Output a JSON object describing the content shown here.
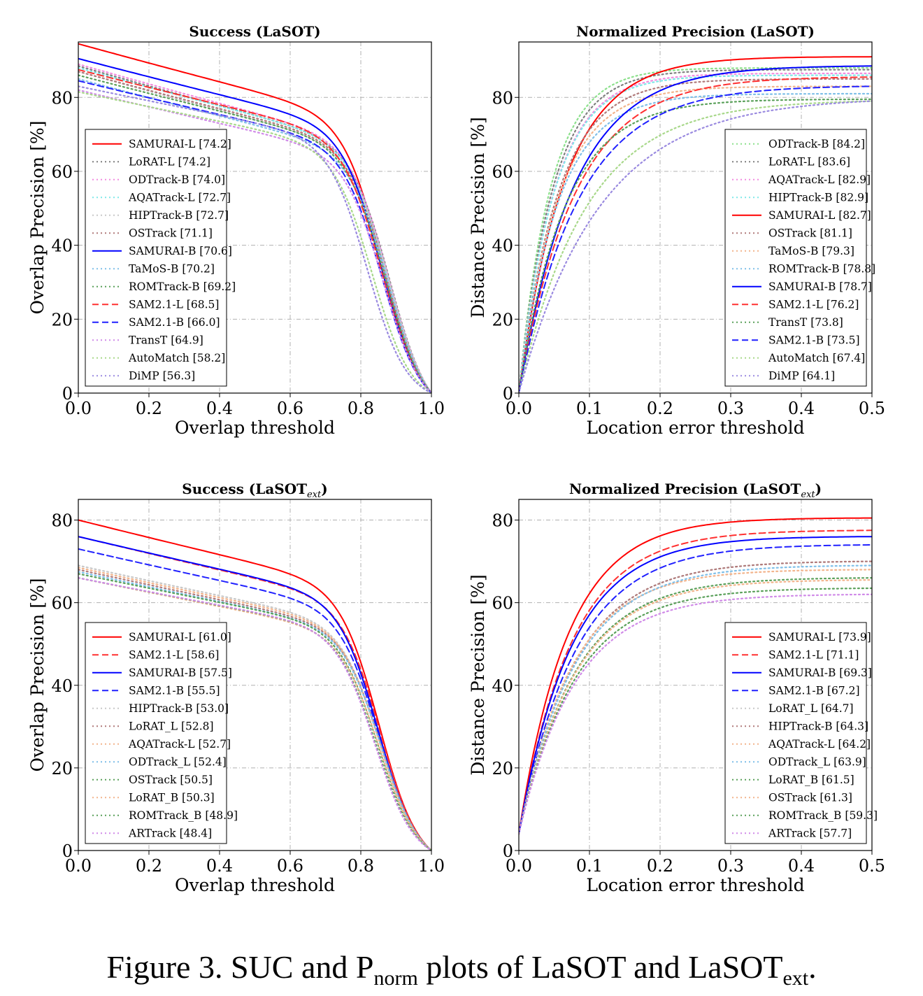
{
  "caption": {
    "prefix": "Figure 3. SUC and P",
    "sub1": "norm",
    "mid": " plots of LaSOT and LaSOT",
    "sub2": "ext",
    "suffix": "."
  },
  "chart_data": [
    {
      "type": "line",
      "title": "Success (LaSOT)",
      "title_sub": "",
      "title_suffix": "",
      "xlabel": "Overlap threshold",
      "ylabel": "Overlap Precision [%]",
      "xlim": [
        0,
        1.0
      ],
      "ylim": [
        0,
        95
      ],
      "xticks": [
        0.0,
        0.2,
        0.4,
        0.6,
        0.8,
        1.0
      ],
      "xtick_labels": [
        "0.0",
        "0.2",
        "0.4",
        "0.6",
        "0.8",
        "1.0"
      ],
      "yticks": [
        0,
        20,
        40,
        60,
        80
      ],
      "grid": true,
      "legend_position": "lower-left",
      "curve_kind": "success",
      "series": [
        {
          "name": "SAMURAI-L",
          "score": "[74.2]",
          "start": 94.5,
          "auc": 74.2,
          "color": "#ff0000",
          "style": "solid",
          "k": 1.0
        },
        {
          "name": "LoRAT-L",
          "score": "[74.2]",
          "start": 88.5,
          "auc": 74.2,
          "color": "#7f7f7f",
          "style": "dotted",
          "k": 1.0
        },
        {
          "name": "ODTrack-B",
          "score": "[74.0]",
          "start": 89,
          "auc": 74.0,
          "color": "#f28ce0",
          "style": "dotted",
          "k": 1.0
        },
        {
          "name": "AQATrack-L",
          "score": "[72.7]",
          "start": 88,
          "auc": 72.7,
          "color": "#7fe8e8",
          "style": "dotted",
          "k": 1.0
        },
        {
          "name": "HIPTrack-B",
          "score": "[72.7]",
          "start": 87,
          "auc": 72.7,
          "color": "#c8c8c8",
          "style": "dotted",
          "k": 1.0
        },
        {
          "name": "OSTrack",
          "score": "[71.1]",
          "start": 87,
          "auc": 71.1,
          "color": "#b07a7a",
          "style": "dotted",
          "k": 1.0
        },
        {
          "name": "SAMURAI-B",
          "score": "[70.6]",
          "start": 90.5,
          "auc": 70.6,
          "color": "#0000ff",
          "style": "solid",
          "k": 1.0
        },
        {
          "name": "TaMoS-B",
          "score": "[70.2]",
          "start": 85,
          "auc": 70.2,
          "color": "#7fbfe8",
          "style": "dotted",
          "k": 1.0
        },
        {
          "name": "ROMTrack-B",
          "score": "[69.2]",
          "start": 86,
          "auc": 69.2,
          "color": "#5aa05a",
          "style": "dotted",
          "k": 1.0
        },
        {
          "name": "SAM2.1-L",
          "score": "[68.5]",
          "start": 87.5,
          "auc": 68.5,
          "color": "#ff3030",
          "style": "dashed",
          "k": 1.0
        },
        {
          "name": "SAM2.1-B",
          "score": "[66.0]",
          "start": 84.5,
          "auc": 66.0,
          "color": "#2020ff",
          "style": "dashed",
          "k": 1.0
        },
        {
          "name": "TransT",
          "score": "[64.9]",
          "start": 82,
          "auc": 64.9,
          "color": "#d08ae8",
          "style": "dotted",
          "k": 1.0
        },
        {
          "name": "AutoMatch",
          "score": "[58.2]",
          "start": 81.5,
          "auc": 58.2,
          "color": "#a8d88a",
          "style": "dotted",
          "k": 1.0
        },
        {
          "name": "DiMP",
          "score": "[56.3]",
          "start": 83,
          "auc": 56.3,
          "color": "#9a8ae0",
          "style": "dotted",
          "k": 1.0
        }
      ]
    },
    {
      "type": "line",
      "title": "Normalized Precision (LaSOT)",
      "title_sub": "",
      "title_suffix": "",
      "xlabel": "Location error threshold",
      "ylabel": "Distance Precision [%]",
      "xlim": [
        0,
        0.5
      ],
      "ylim": [
        0,
        95
      ],
      "xticks": [
        0.0,
        0.1,
        0.2,
        0.3,
        0.4,
        0.5
      ],
      "xtick_labels": [
        "0.0",
        "0.1",
        "0.2",
        "0.3",
        "0.4",
        "0.5"
      ],
      "yticks": [
        0,
        20,
        40,
        60,
        80
      ],
      "grid": true,
      "legend_position": "lower-right",
      "curve_kind": "precision",
      "series": [
        {
          "name": "ODTrack-B",
          "score": "[84.2]",
          "start": 0,
          "end": 88,
          "color": "#8ce08c",
          "style": "dotted",
          "k": 0.045
        },
        {
          "name": "LoRAT-L",
          "score": "[83.6]",
          "start": 0,
          "end": 87.5,
          "color": "#7f7f7f",
          "style": "dotted",
          "k": 0.048
        },
        {
          "name": "AQATrack-L",
          "score": "[82.9]",
          "start": 0,
          "end": 86.5,
          "color": "#f28ce0",
          "style": "dotted",
          "k": 0.05
        },
        {
          "name": "HIPTrack-B",
          "score": "[82.9]",
          "start": 0,
          "end": 86,
          "color": "#7fe8e8",
          "style": "dotted",
          "k": 0.05
        },
        {
          "name": "SAMURAI-L",
          "score": "[82.7]",
          "start": 0,
          "end": 91,
          "color": "#ff0000",
          "style": "solid",
          "k": 0.065
        },
        {
          "name": "OSTrack",
          "score": "[81.1]",
          "start": 0,
          "end": 85,
          "color": "#b07a7a",
          "style": "dotted",
          "k": 0.055
        },
        {
          "name": "TaMoS-B",
          "score": "[79.3]",
          "start": 0,
          "end": 83,
          "color": "#f2b48c",
          "style": "dotted",
          "k": 0.055
        },
        {
          "name": "ROMTrack-B",
          "score": "[78.8]",
          "start": 0,
          "end": 81,
          "color": "#7fbfe8",
          "style": "dotted",
          "k": 0.055
        },
        {
          "name": "SAMURAI-B",
          "score": "[78.7]",
          "start": 0,
          "end": 88.5,
          "color": "#0000ff",
          "style": "solid",
          "k": 0.078
        },
        {
          "name": "SAM2.1-L",
          "score": "[76.2]",
          "start": 0,
          "end": 85.5,
          "color": "#ff3030",
          "style": "dashed",
          "k": 0.08
        },
        {
          "name": "TransT",
          "score": "[73.8]",
          "start": 0,
          "end": 79.5,
          "color": "#5aa05a",
          "style": "dotted",
          "k": 0.065
        },
        {
          "name": "SAM2.1-B",
          "score": "[73.5]",
          "start": 0,
          "end": 83,
          "color": "#2020ff",
          "style": "dashed",
          "k": 0.085
        },
        {
          "name": "AutoMatch",
          "score": "[67.4]",
          "start": 0,
          "end": 79,
          "color": "#a8d88a",
          "style": "dotted",
          "k": 0.095
        },
        {
          "name": "DiMP",
          "score": "[64.1]",
          "start": 0,
          "end": 79,
          "color": "#9a8ae0",
          "style": "dotted",
          "k": 0.115
        }
      ]
    },
    {
      "type": "line",
      "title": "Success (LaSOT",
      "title_sub": "ext",
      "title_suffix": ")",
      "xlabel": "Overlap threshold",
      "ylabel": "Overlap Precision [%]",
      "xlim": [
        0,
        1.0
      ],
      "ylim": [
        0,
        85
      ],
      "xticks": [
        0.0,
        0.2,
        0.4,
        0.6,
        0.8,
        1.0
      ],
      "xtick_labels": [
        "0.0",
        "0.2",
        "0.4",
        "0.6",
        "0.8",
        "1.0"
      ],
      "yticks": [
        0,
        20,
        40,
        60,
        80
      ],
      "grid": true,
      "legend_position": "lower-left",
      "curve_kind": "success",
      "series": [
        {
          "name": "SAMURAI-L",
          "score": "[61.0]",
          "start": 80,
          "auc": 61.0,
          "color": "#ff0000",
          "style": "solid",
          "k": 1.0
        },
        {
          "name": "SAM2.1-L",
          "score": "[58.6]",
          "start": 76,
          "auc": 58.6,
          "color": "#ff3030",
          "style": "dashed",
          "k": 1.0
        },
        {
          "name": "SAMURAI-B",
          "score": "[57.5]",
          "start": 76,
          "auc": 57.5,
          "color": "#0000ff",
          "style": "solid",
          "k": 1.0
        },
        {
          "name": "SAM2.1-B",
          "score": "[55.5]",
          "start": 73,
          "auc": 55.5,
          "color": "#2020ff",
          "style": "dashed",
          "k": 1.0
        },
        {
          "name": "HIPTrack-B",
          "score": "[53.0]",
          "start": 69,
          "auc": 53.0,
          "color": "#c8c8c8",
          "style": "dotted",
          "k": 1.0
        },
        {
          "name": "LoRAT_L",
          "score": "[52.8]",
          "start": 68,
          "auc": 52.8,
          "color": "#b07a7a",
          "style": "dotted",
          "k": 1.0
        },
        {
          "name": "AQATrack-L",
          "score": "[52.7]",
          "start": 68.5,
          "auc": 52.7,
          "color": "#f2b48c",
          "style": "dotted",
          "k": 1.0
        },
        {
          "name": "ODTrack_L",
          "score": "[52.4]",
          "start": 67.5,
          "auc": 52.4,
          "color": "#7fbfe8",
          "style": "dotted",
          "k": 1.0
        },
        {
          "name": "OSTrack",
          "score": "[50.5]",
          "start": 67,
          "auc": 50.5,
          "color": "#5aa05a",
          "style": "dotted",
          "k": 1.0
        },
        {
          "name": "LoRAT_B",
          "score": "[50.3]",
          "start": 66,
          "auc": 50.3,
          "color": "#f2b48c",
          "style": "dotted",
          "k": 1.0
        },
        {
          "name": "ROMTrack_B",
          "score": "[48.9]",
          "start": 66,
          "auc": 48.9,
          "color": "#5aa05a",
          "style": "dotted",
          "k": 1.0
        },
        {
          "name": "ARTrack",
          "score": "[48.4]",
          "start": 66,
          "auc": 48.4,
          "color": "#d08ae8",
          "style": "dotted",
          "k": 1.0
        }
      ]
    },
    {
      "type": "line",
      "title": "Normalized Precision (LaSOT",
      "title_sub": "ext",
      "title_suffix": ")",
      "xlabel": "Location error threshold",
      "ylabel": "Distance Precision [%]",
      "xlim": [
        0,
        0.5
      ],
      "ylim": [
        0,
        85
      ],
      "xticks": [
        0.0,
        0.1,
        0.2,
        0.3,
        0.4,
        0.5
      ],
      "xtick_labels": [
        "0.0",
        "0.1",
        "0.2",
        "0.3",
        "0.4",
        "0.5"
      ],
      "yticks": [
        0,
        20,
        40,
        60,
        80
      ],
      "grid": true,
      "legend_position": "lower-right",
      "curve_kind": "precision",
      "series": [
        {
          "name": "SAMURAI-L",
          "score": "[73.9]",
          "start": 4,
          "end": 80.5,
          "color": "#ff0000",
          "style": "solid",
          "k": 0.07
        },
        {
          "name": "SAM2.1-L",
          "score": "[71.1]",
          "start": 4,
          "end": 77.5,
          "color": "#ff3030",
          "style": "dashed",
          "k": 0.075
        },
        {
          "name": "SAMURAI-B",
          "score": "[69.3]",
          "start": 4,
          "end": 76,
          "color": "#0000ff",
          "style": "solid",
          "k": 0.075
        },
        {
          "name": "SAM2.1-B",
          "score": "[67.2]",
          "start": 4,
          "end": 74,
          "color": "#2020ff",
          "style": "dashed",
          "k": 0.08
        },
        {
          "name": "LoRAT_L",
          "score": "[64.7]",
          "start": 4,
          "end": 70,
          "color": "#c8c8c8",
          "style": "dotted",
          "k": 0.08
        },
        {
          "name": "HIPTrack-B",
          "score": "[64.3]",
          "start": 4,
          "end": 70,
          "color": "#b07a7a",
          "style": "dotted",
          "k": 0.08
        },
        {
          "name": "AQATrack-L",
          "score": "[64.2]",
          "start": 4,
          "end": 68,
          "color": "#f2b48c",
          "style": "dotted",
          "k": 0.075
        },
        {
          "name": "ODTrack_L",
          "score": "[63.9]",
          "start": 4,
          "end": 69,
          "color": "#7fbfe8",
          "style": "dotted",
          "k": 0.08
        },
        {
          "name": "LoRAT_B",
          "score": "[61.5]",
          "start": 4,
          "end": 66,
          "color": "#5aa05a",
          "style": "dotted",
          "k": 0.08
        },
        {
          "name": "OSTrack",
          "score": "[61.3]",
          "start": 4,
          "end": 65.5,
          "color": "#f2b48c",
          "style": "dotted",
          "k": 0.08
        },
        {
          "name": "ROMTrack_B",
          "score": "[59.3]",
          "start": 4,
          "end": 63.5,
          "color": "#5aa05a",
          "style": "dotted",
          "k": 0.08
        },
        {
          "name": "ARTrack",
          "score": "[57.7]",
          "start": 4,
          "end": 62,
          "color": "#d08ae8",
          "style": "dotted",
          "k": 0.08
        }
      ]
    }
  ]
}
